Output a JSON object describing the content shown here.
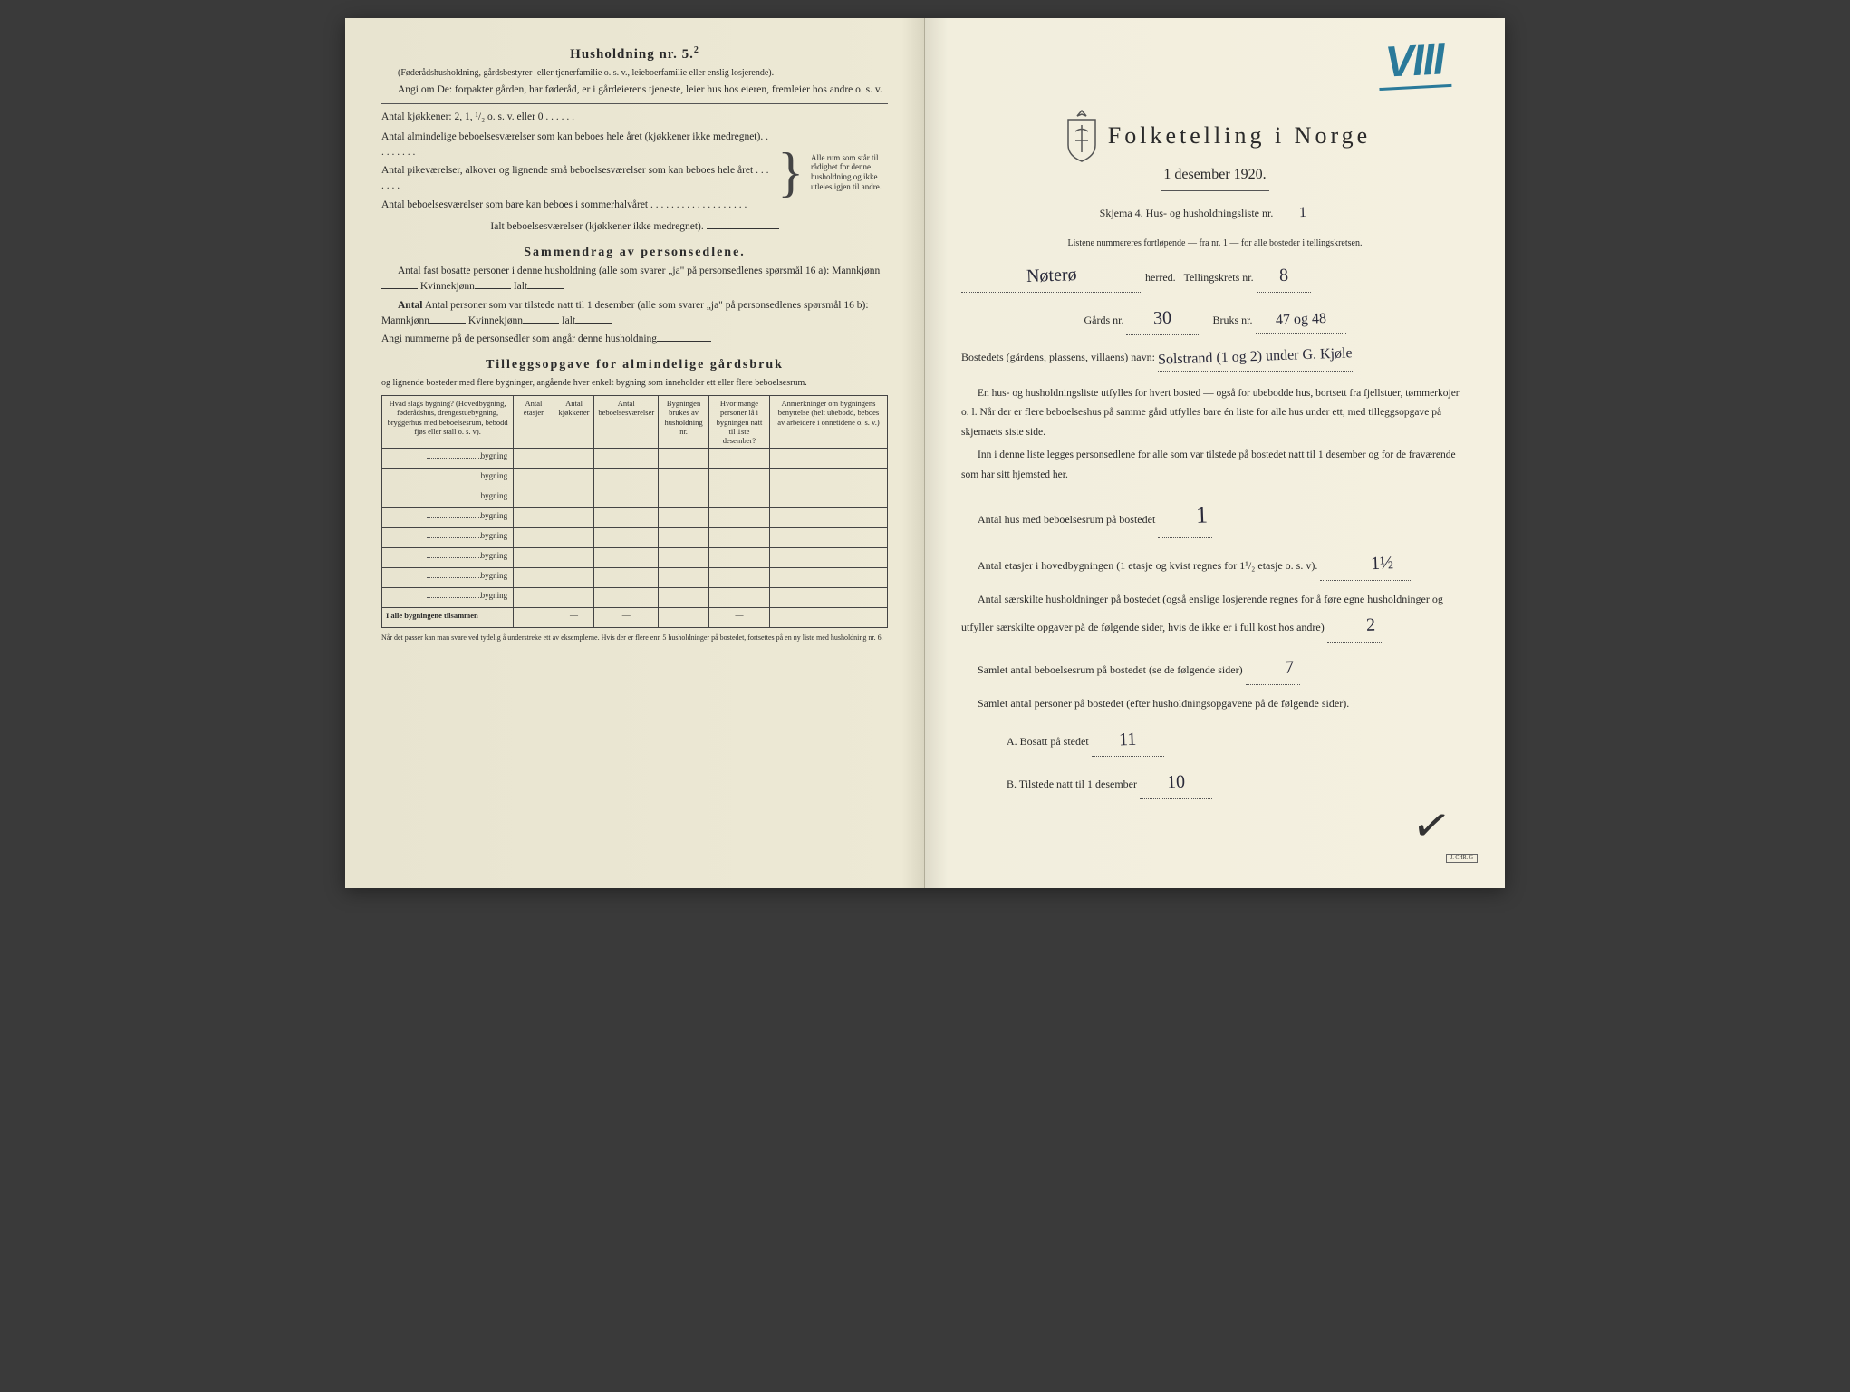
{
  "left": {
    "heading": "Husholdning nr. 5.",
    "heading_sup": "2",
    "intro_paren": "(Føderådshusholdning, gårdsbestyrer- eller tjenerfamilie o. s. v., leieboerfamilie eller enslig losjerende).",
    "intro_line1": "Angi om De: forpakter gården, har føderåd, er i gårdeierens tjeneste, leier hus hos eieren, fremleier hos andre o. s. v.",
    "kitchen_label": "Antal kjøkkener: 2, 1, ¹/₂ o. s. v. eller 0 . . . . . .",
    "rooms_l1": "Antal almindelige beboelsesværelser som kan beboes hele året (kjøkkener ikke medregnet). . . . . . . . .",
    "rooms_l2": "Antal pikeværelser, alkover og lignende små beboelsesværelser som kan beboes hele året . . . . . . .",
    "rooms_l3": "Antal beboelsesværelser som bare kan beboes i sommerhalvåret . . . . . . . . . . . . . . . . . . .",
    "brace_text": "Alle rum som står til rådighet for denne husholdning og ikke utleies igjen til andre.",
    "total_rooms": "Ialt beboelsesværelser (kjøkkener ikke medregnet).",
    "summary_heading": "Sammendrag av personsedlene.",
    "summary_l1a": "Antal fast bosatte personer i denne husholdning (alle som svarer „ja\" på personsedlenes spørsmål 16 a): Mannkjønn",
    "summary_kvinne": "Kvinnekjønn",
    "summary_ialt": "Ialt",
    "summary_l2a": "Antal personer som var tilstede natt til 1 desember (alle som svarer „ja\" på personsedlenes spørsmål 16 b): Mannkjønn",
    "summary_l3": "Angi nummerne på de personsedler som angår denne husholdning",
    "tillegg_heading": "Tilleggsopgave for almindelige gårdsbruk",
    "tillegg_sub": "og lignende bosteder med flere bygninger, angående hver enkelt bygning som inneholder ett eller flere beboelsesrum.",
    "table": {
      "headers": [
        "Hvad slags bygning?\n(Hovedbygning, føderådshus, drengestuebygning, bryggerhus med beboelsesrum, bebodd fjøs eller stall o. s. v).",
        "Antal etasjer",
        "Antal kjøkkener",
        "Antal beboelsesværelser",
        "Bygningen brukes av husholdning nr.",
        "Hvor mange personer lå i bygningen natt til 1ste desember?",
        "Anmerkninger om bygningens benyttelse (helt ubebodd, beboes av arbeidere i onnetidene o. s. v.)"
      ],
      "row_label": "bygning",
      "row_count": 8,
      "footer_label": "I alle bygningene tilsammen"
    },
    "footnote": "Når det passer kan man svare ved tydelig å understreke ett av eksemplerne.\nHvis der er flere enn 5 husholdninger på bostedet, fortsettes på en ny liste med husholdning nr. 6."
  },
  "right": {
    "crayon": "VIII",
    "title": "Folketelling i Norge",
    "date": "1 desember 1920.",
    "skjema_label": "Skjema 4.  Hus- og husholdningsliste nr.",
    "skjema_nr": "1",
    "listene": "Listene nummereres fortløpende — fra nr. 1 — for alle bosteder i tellingskretsen.",
    "herred_label": "herred.",
    "herred_value": "Nøterø",
    "tellingskrets_label": "Tellingskrets nr.",
    "tellingskrets_value": "8",
    "gards_label": "Gårds nr.",
    "gards_value": "30",
    "bruks_label": "Bruks nr.",
    "bruks_value": "47 og 48",
    "bosted_label": "Bostedets (gårdens, plassens, villaens) navn:",
    "bosted_value": "Solstrand (1 og 2) under G. Kjøle",
    "para1": "En hus- og husholdningsliste utfylles for hvert bosted — også for ubebodde hus, bortsett fra fjellstuer, tømmerkojer o. l. Når der er flere beboelseshus på samme gård utfylles bare én liste for alle hus under ett, med tilleggsopgave på skjemaets siste side.",
    "para2": "Inn i denne liste legges personsedlene for alle som var tilstede på bostedet natt til 1 desember og for de fraværende som har sitt hjemsted her.",
    "q1_label": "Antal hus med beboelsesrum på bostedet",
    "q1_value": "1",
    "q2_label_a": "Antal etasjer i hovedbygningen (1 etasje og kvist regnes for 1¹/₂ etasje o. s. v).",
    "q2_value": "1½",
    "q3_label": "Antal særskilte husholdninger på bostedet (også enslige losjerende regnes for å føre egne husholdninger og utfyller særskilte opgaver på de følgende sider, hvis de ikke er i full kost hos andre)",
    "q3_value": "2",
    "q4_label": "Samlet antal beboelsesrum på bostedet (se de følgende sider)",
    "q4_value": "7",
    "q5_label": "Samlet antal personer på bostedet (efter husholdningsopgavene på de følgende sider).",
    "qA_label": "A.  Bosatt på stedet",
    "qA_value": "11",
    "qB_label": "B.  Tilstede natt til 1 desember",
    "qB_value": "10",
    "checkmark": "✓"
  },
  "colors": {
    "paper": "#ede9d5",
    "ink": "#2a2a2a",
    "crayon": "#2a7a9a",
    "handwriting": "#2a2a3a"
  }
}
